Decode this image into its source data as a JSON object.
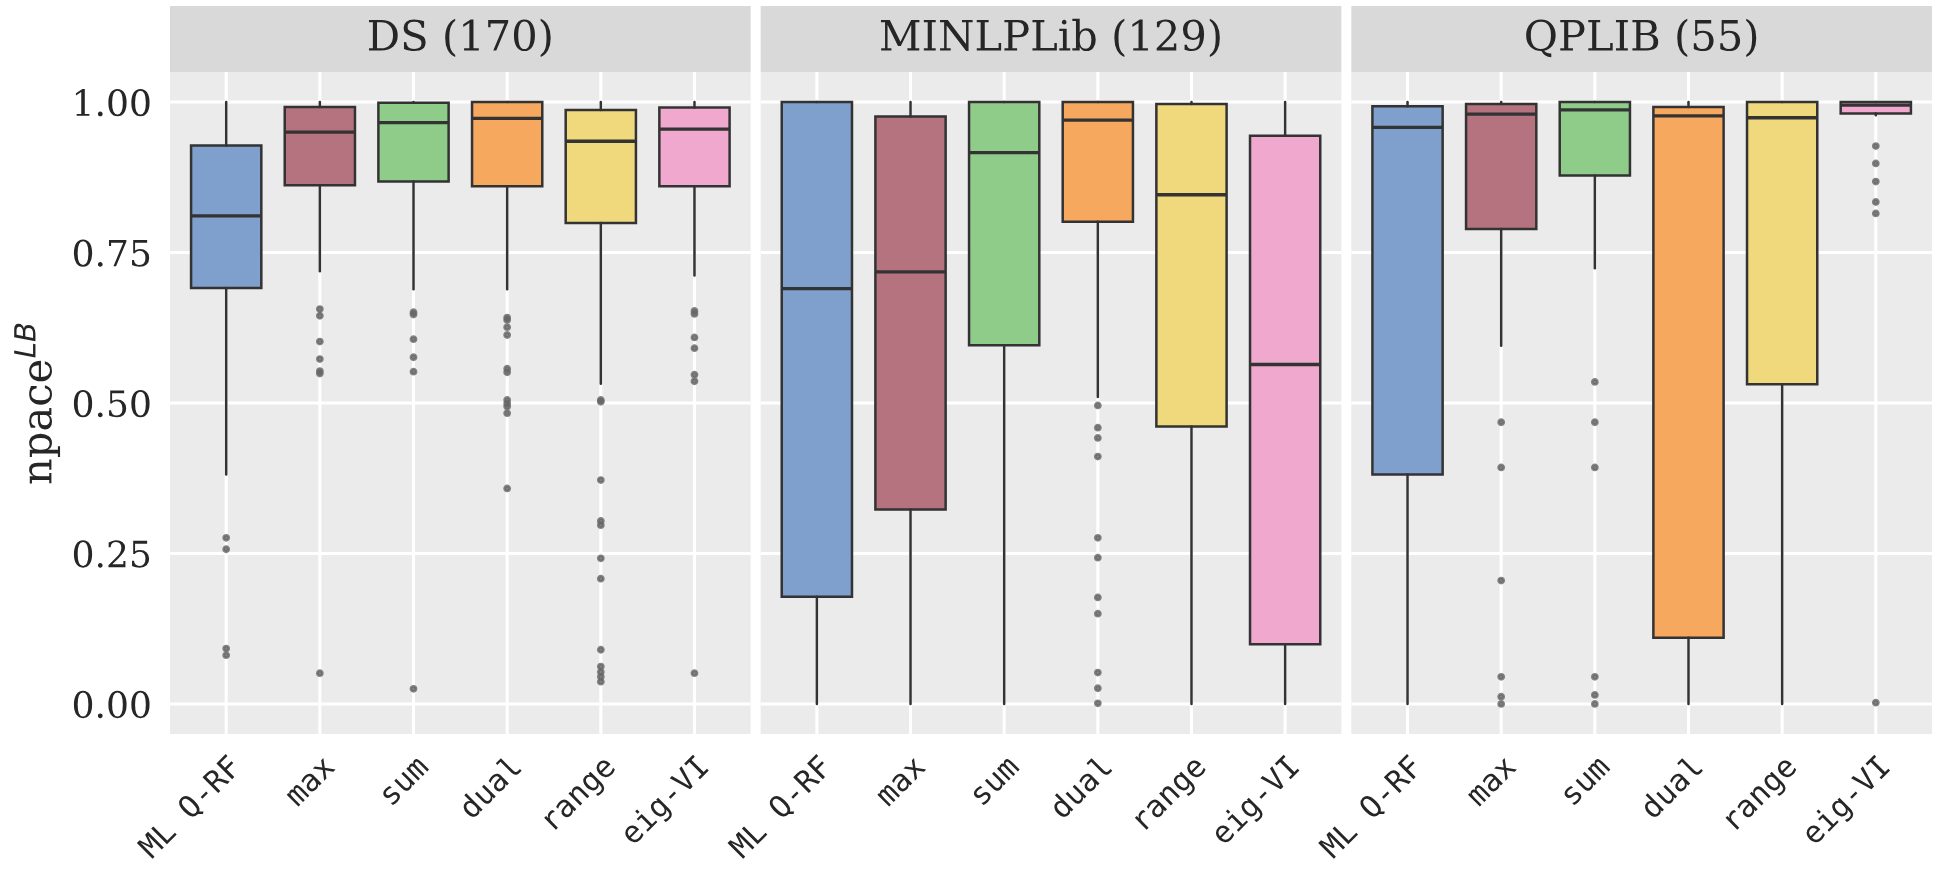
{
  "chart_data": [
    {
      "type": "box",
      "title": "DS (170)",
      "ylabel": "npace$^{LB}$",
      "categories": [
        "ML Q-RF",
        "max",
        "sum",
        "dual",
        "range",
        "eig-VI"
      ],
      "colors": [
        "#7f9fcc",
        "#b5737f",
        "#8fcc8a",
        "#f6a95e",
        "#f0d97c",
        "#f0a8cf"
      ],
      "boxes": [
        {
          "low": 0.381,
          "q1": 0.691,
          "median": 0.811,
          "q3": 0.928,
          "high": 1.0,
          "outliers": [
            0.276,
            0.257,
            0.092,
            0.081
          ]
        },
        {
          "low": 0.719,
          "q1": 0.862,
          "median": 0.95,
          "q3": 0.992,
          "high": 1.0,
          "outliers": [
            0.656,
            0.645,
            0.602,
            0.573,
            0.553,
            0.549,
            0.051
          ]
        },
        {
          "low": 0.689,
          "q1": 0.868,
          "median": 0.966,
          "q3": 0.999,
          "high": 1.0,
          "outliers": [
            0.651,
            0.647,
            0.606,
            0.576,
            0.552,
            0.025
          ]
        },
        {
          "low": 0.689,
          "q1": 0.86,
          "median": 0.973,
          "q3": 1.0,
          "high": 1.0,
          "outliers": [
            0.642,
            0.638,
            0.626,
            0.613,
            0.557,
            0.551,
            0.505,
            0.499,
            0.494,
            0.483,
            0.358
          ]
        },
        {
          "low": 0.532,
          "q1": 0.799,
          "median": 0.935,
          "q3": 0.987,
          "high": 1.0,
          "outliers": [
            0.505,
            0.502,
            0.372,
            0.304,
            0.297,
            0.242,
            0.208,
            0.09,
            0.062,
            0.053,
            0.045,
            0.037
          ]
        },
        {
          "low": 0.712,
          "q1": 0.86,
          "median": 0.955,
          "q3": 0.991,
          "high": 1.0,
          "outliers": [
            0.653,
            0.648,
            0.609,
            0.591,
            0.547,
            0.536,
            0.051
          ]
        }
      ],
      "ylim": [
        -0.05,
        1.05
      ],
      "yticks": [
        {
          "value": 0,
          "label": "0.00"
        },
        {
          "value": 0.25,
          "label": "0.25"
        },
        {
          "value": 0.5,
          "label": "0.50"
        },
        {
          "value": 0.75,
          "label": "0.75"
        },
        {
          "value": 1,
          "label": "1.00"
        }
      ],
      "grid": true
    },
    {
      "type": "box",
      "title": "MINLPLib (129)",
      "categories": [
        "ML Q-RF",
        "max",
        "sum",
        "dual",
        "range",
        "eig-VI"
      ],
      "colors": [
        "#7f9fcc",
        "#b5737f",
        "#8fcc8a",
        "#f6a95e",
        "#f0d97c",
        "#f0a8cf"
      ],
      "boxes": [
        {
          "low": 0.0,
          "q1": 0.178,
          "median": 0.69,
          "q3": 1.0,
          "high": 1.0
        },
        {
          "low": 0.0,
          "q1": 0.323,
          "median": 0.718,
          "q3": 0.976,
          "high": 1.0
        },
        {
          "low": 0.0,
          "q1": 0.596,
          "median": 0.916,
          "q3": 1.0,
          "high": 1.0
        },
        {
          "low": 0.51,
          "q1": 0.801,
          "median": 0.97,
          "q3": 1.0,
          "high": 1.0,
          "outliers": [
            0.496,
            0.459,
            0.442,
            0.411,
            0.276,
            0.243,
            0.177,
            0.15,
            0.052,
            0.026,
            0.001
          ]
        },
        {
          "low": 0.0,
          "q1": 0.461,
          "median": 0.846,
          "q3": 0.997,
          "high": 1.0
        },
        {
          "low": 0.0,
          "q1": 0.099,
          "median": 0.564,
          "q3": 0.944,
          "high": 1.0
        }
      ],
      "ylim": [
        -0.05,
        1.05
      ],
      "grid": true,
      "tick_labels": "x"
    },
    {
      "type": "box",
      "title": "QPLIB (55)",
      "categories": [
        "ML Q-RF",
        "max",
        "sum",
        "dual",
        "range",
        "eig-VI"
      ],
      "colors": [
        "#7f9fcc",
        "#b5737f",
        "#8fcc8a",
        "#f6a95e",
        "#f0d97c",
        "#f0a8cf"
      ],
      "boxes": [
        {
          "low": 0.0,
          "q1": 0.381,
          "median": 0.958,
          "q3": 0.993,
          "high": 1.0
        },
        {
          "low": 0.595,
          "q1": 0.789,
          "median": 0.98,
          "q3": 0.997,
          "high": 1.0,
          "outliers": [
            0.468,
            0.393,
            0.205,
            0.045,
            0.012,
            0.0
          ]
        },
        {
          "low": 0.724,
          "q1": 0.878,
          "median": 0.987,
          "q3": 1.0,
          "high": 1.0,
          "outliers": [
            0.535,
            0.468,
            0.393,
            0.045,
            0.015,
            0.0
          ]
        },
        {
          "low": 0.0,
          "q1": 0.11,
          "median": 0.977,
          "q3": 0.992,
          "high": 1.0
        },
        {
          "low": 0.0,
          "q1": 0.531,
          "median": 0.974,
          "q3": 1.0,
          "high": 1.0
        },
        {
          "low": 0.978,
          "q1": 0.981,
          "median": 0.995,
          "q3": 1.0,
          "high": 1.0,
          "outliers": [
            0.927,
            0.898,
            0.868,
            0.834,
            0.815,
            0.002
          ]
        }
      ],
      "ylim": [
        -0.05,
        1.05
      ],
      "grid": true,
      "tick_labels": "x"
    }
  ]
}
